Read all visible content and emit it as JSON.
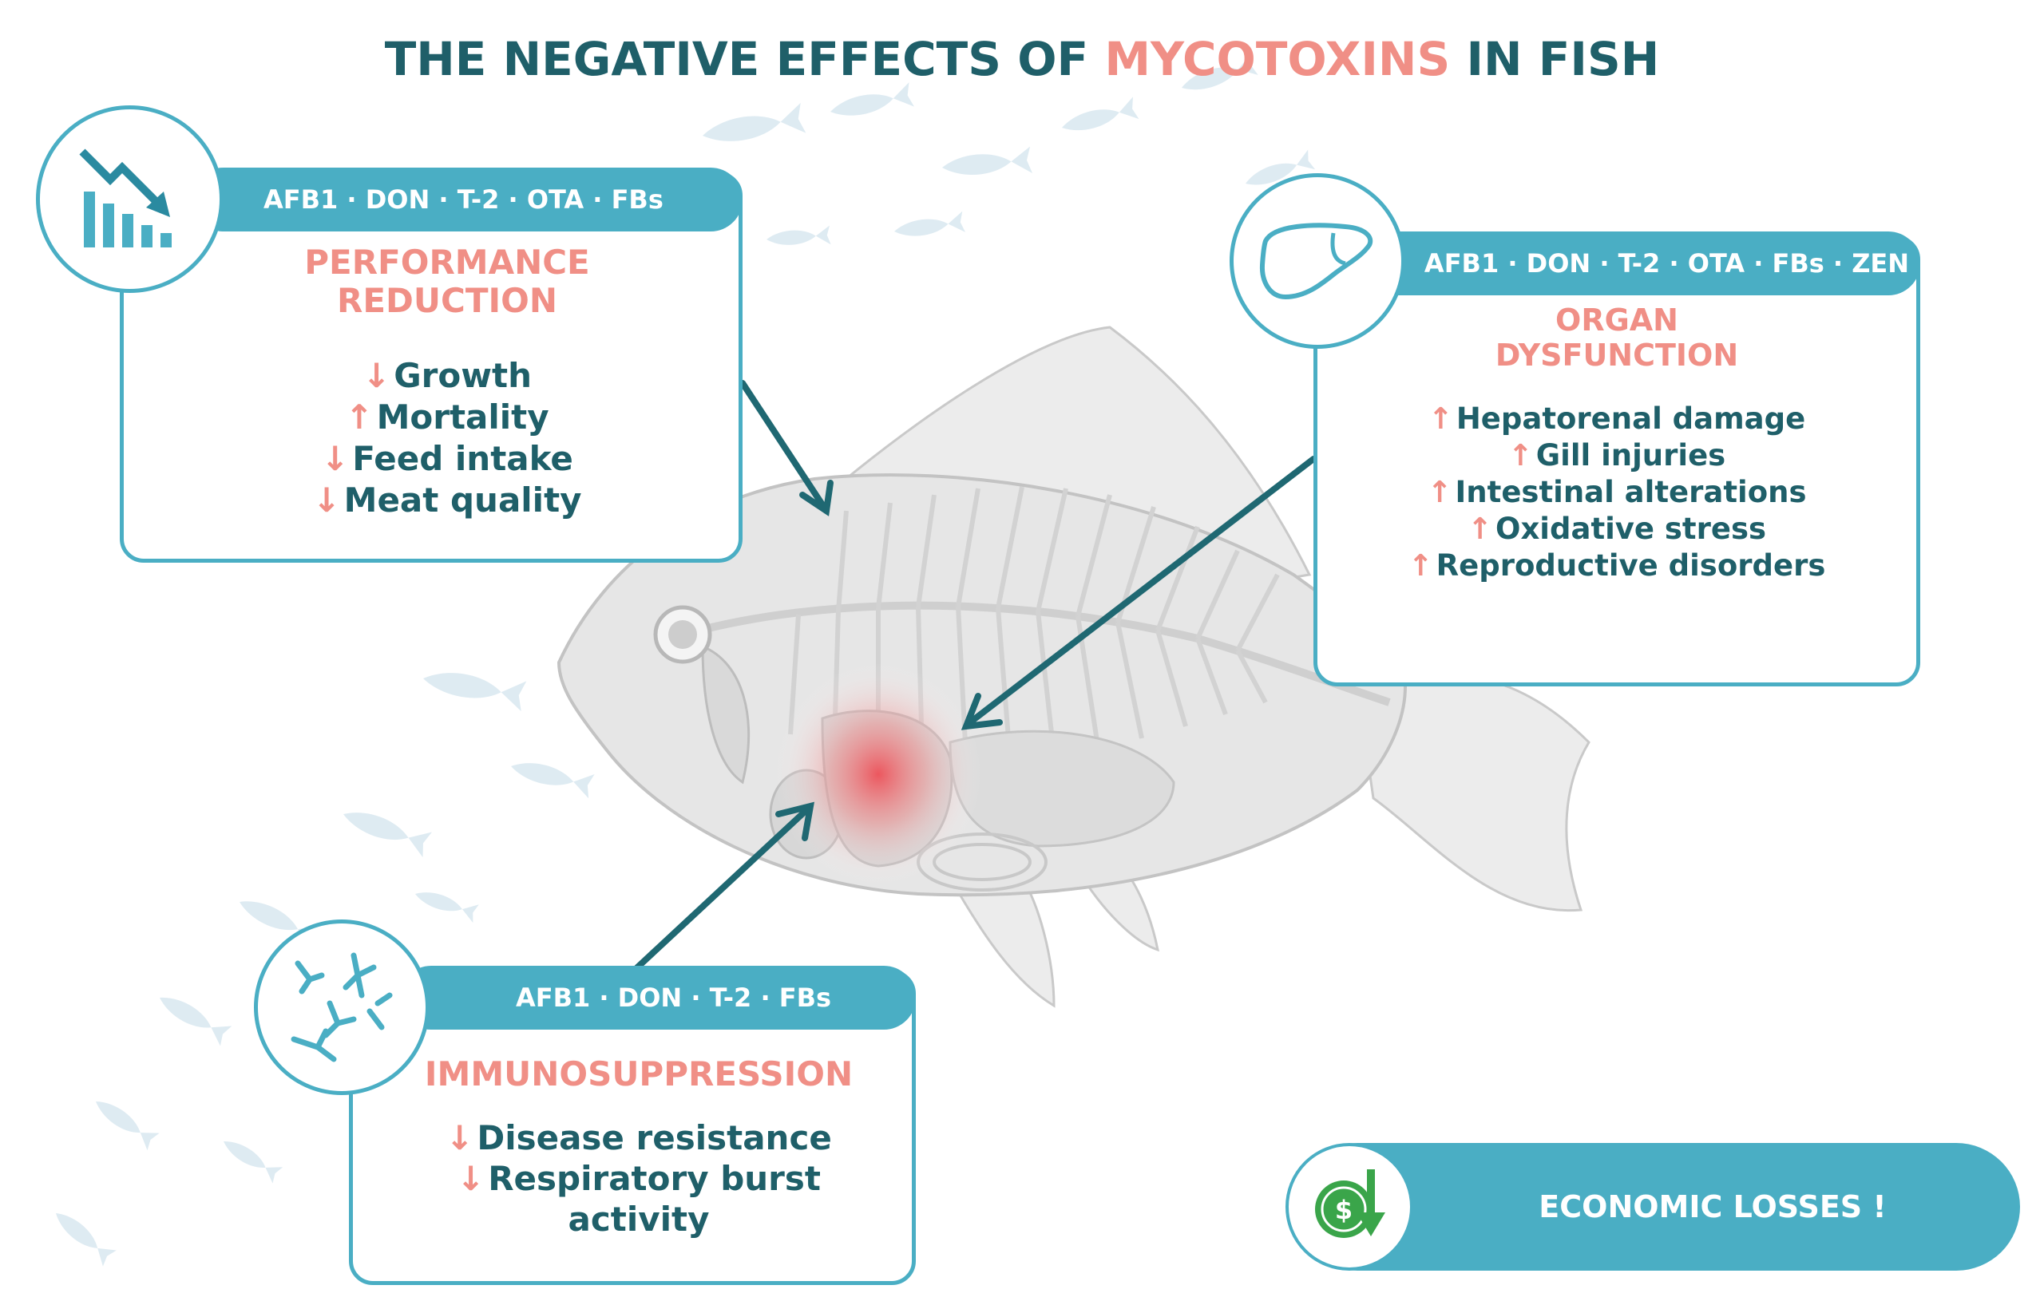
{
  "title": {
    "part1": "THE NEGATIVE EFFECTS OF ",
    "highlight": "MYCOTOXINS",
    "part2": " IN FISH"
  },
  "colors": {
    "teal": "#4aaec4",
    "dark_teal": "#1f5f69",
    "salmon": "#f08f86",
    "money_green": "#3aa54a"
  },
  "performance": {
    "icon": "declining-bar-chart-icon",
    "toxins": "AFB1 · DON · T-2 · OTA · FBs",
    "heading_line1": "PERFORMANCE",
    "heading_line2": "REDUCTION",
    "effects": [
      {
        "dir": "↓",
        "text": "Growth"
      },
      {
        "dir": "↑",
        "text": "Mortality"
      },
      {
        "dir": "↓",
        "text": "Feed intake"
      },
      {
        "dir": "↓",
        "text": "Meat quality"
      }
    ]
  },
  "organ": {
    "icon": "liver-icon",
    "toxins": "AFB1 · DON · T-2 · OTA · FBs · ZEN",
    "heading_line1": "ORGAN",
    "heading_line2": "DYSFUNCTION",
    "effects": [
      {
        "dir": "↑",
        "text": "Hepatorenal damage"
      },
      {
        "dir": "↑",
        "text": "Gill injuries"
      },
      {
        "dir": "↑",
        "text": "Intestinal alterations"
      },
      {
        "dir": "↑",
        "text": "Oxidative stress"
      },
      {
        "dir": "↑",
        "text": "Reproductive disorders"
      }
    ]
  },
  "immuno": {
    "icon": "antibodies-icon",
    "toxins": "AFB1 · DON · T-2 · FBs",
    "heading": "IMMUNOSUPPRESSION",
    "effects": [
      {
        "dir": "↓",
        "text": "Disease resistance"
      },
      {
        "dir": "↓",
        "text": "Respiratory burst"
      },
      {
        "dir": "",
        "text": "activity"
      }
    ]
  },
  "economic": {
    "icon": "money-down-icon",
    "label": "ECONOMIC LOSSES !"
  },
  "illustration": {
    "icon": "fish-skeleton-icon"
  }
}
